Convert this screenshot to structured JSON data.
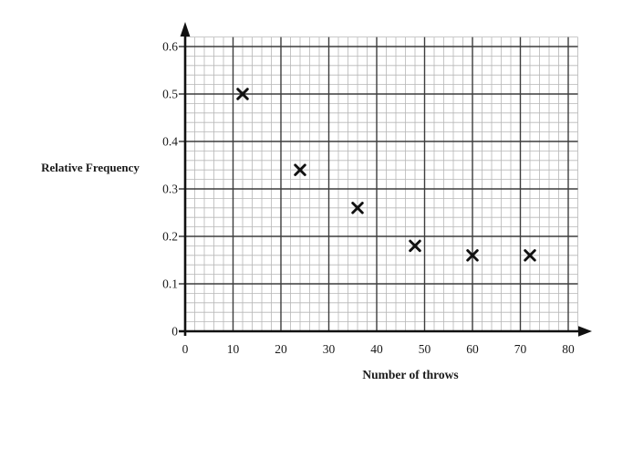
{
  "chart_data": {
    "type": "scatter",
    "title": "",
    "xlabel": "Number of throws",
    "ylabel": "Relative Frequency",
    "marker": "x",
    "points": [
      {
        "x": 12,
        "y": 0.5
      },
      {
        "x": 24,
        "y": 0.34
      },
      {
        "x": 36,
        "y": 0.26
      },
      {
        "x": 48,
        "y": 0.18
      },
      {
        "x": 60,
        "y": 0.16
      },
      {
        "x": 72,
        "y": 0.16
      }
    ],
    "x_ticks": [
      {
        "v": 0,
        "label": "0"
      },
      {
        "v": 10,
        "label": "10"
      },
      {
        "v": 20,
        "label": "20"
      },
      {
        "v": 30,
        "label": "30"
      },
      {
        "v": 40,
        "label": "40"
      },
      {
        "v": 50,
        "label": "50"
      },
      {
        "v": 60,
        "label": "60"
      },
      {
        "v": 70,
        "label": "70"
      },
      {
        "v": 80,
        "label": "80"
      }
    ],
    "y_ticks": [
      {
        "v": 0,
        "label": "0"
      },
      {
        "v": 0.1,
        "label": "0.1"
      },
      {
        "v": 0.2,
        "label": "0.2"
      },
      {
        "v": 0.3,
        "label": "0.3"
      },
      {
        "v": 0.4,
        "label": "0.4"
      },
      {
        "v": 0.5,
        "label": "0.5"
      },
      {
        "v": 0.6,
        "label": "0.6"
      }
    ],
    "xlim": [
      0,
      82
    ],
    "ylim": [
      0,
      0.62
    ],
    "grid": {
      "minor_step_x": 2,
      "minor_step_y": 0.02,
      "major_step_x": 10,
      "major_step_y": 0.1,
      "minor_color": "#b7b7b7",
      "major_color": "#3d3d3d"
    },
    "colors": {
      "axis": "#111111",
      "marker": "#111111",
      "text": "#1a1a1a",
      "background": "#ffffff"
    }
  }
}
